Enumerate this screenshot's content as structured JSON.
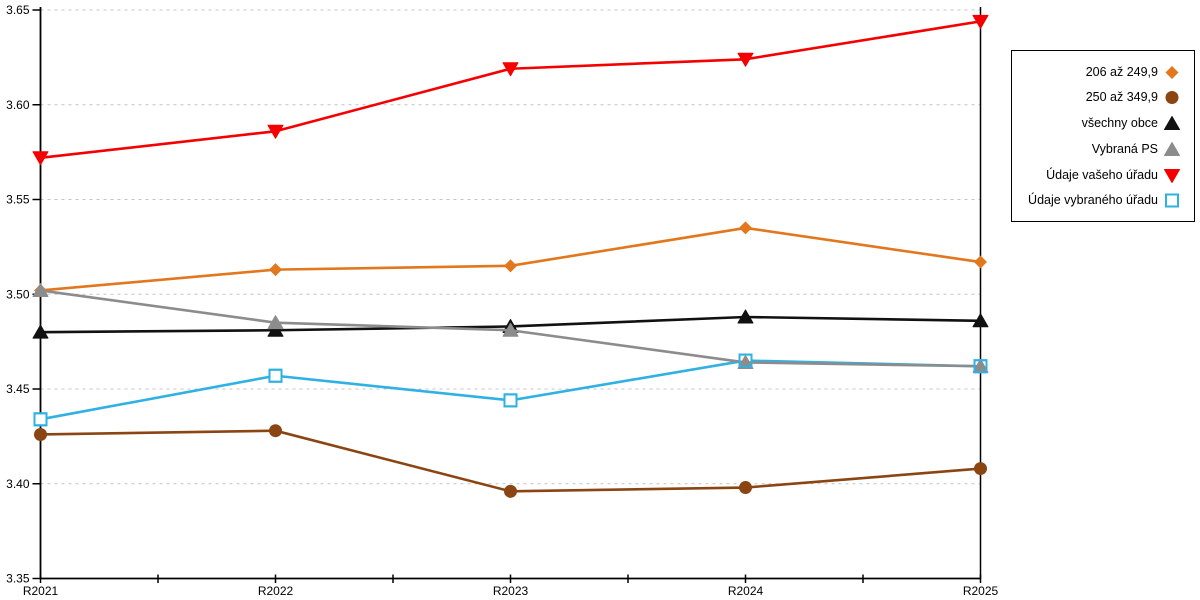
{
  "chart_data": {
    "type": "line",
    "title": "",
    "xlabel": "",
    "ylabel": "",
    "categories": [
      "R2021",
      "R2022",
      "R2023",
      "R2024",
      "R2025"
    ],
    "series": [
      {
        "name": "206 až 249,9",
        "color": "#E2771D",
        "marker": "diamond",
        "values": [
          3.502,
          3.513,
          3.515,
          3.535,
          3.517
        ]
      },
      {
        "name": "250 až 349,9",
        "color": "#8B4513",
        "marker": "circle",
        "values": [
          3.426,
          3.428,
          3.396,
          3.398,
          3.408
        ]
      },
      {
        "name": "všechny obce",
        "color": "#111111",
        "marker": "triangle-up",
        "values": [
          3.48,
          3.481,
          3.483,
          3.488,
          3.486
        ]
      },
      {
        "name": "Vybraná PS",
        "color": "#8C8C8C",
        "marker": "triangle-up",
        "values": [
          3.502,
          3.485,
          3.481,
          3.464,
          3.462
        ]
      },
      {
        "name": "Údaje vašeho úřadu",
        "color": "#F40000",
        "marker": "triangle-down",
        "values": [
          3.572,
          3.586,
          3.619,
          3.624,
          3.644
        ]
      },
      {
        "name": "Údaje vybraného úřadu",
        "color": "#2FB1E3",
        "marker": "square-open",
        "values": [
          3.434,
          3.457,
          3.444,
          3.465,
          3.462
        ]
      }
    ],
    "y_axis": {
      "min": 3.35,
      "max": 3.65,
      "step": 0.05,
      "tick_labels": [
        "3.65",
        "3.60",
        "3.55",
        "3.50",
        "3.45",
        "3.40",
        "3.35"
      ]
    },
    "x_axis": {
      "tick_labels": [
        "R2021",
        "R2022",
        "R2023",
        "R2024",
        "R2025"
      ],
      "minor_ticks_between": true
    },
    "ylim": [
      3.35,
      3.65
    ],
    "grid": "horizontal-dashed",
    "grid_color": "#C4C4C4",
    "axis_color": "#000000",
    "legend_position": "right"
  }
}
